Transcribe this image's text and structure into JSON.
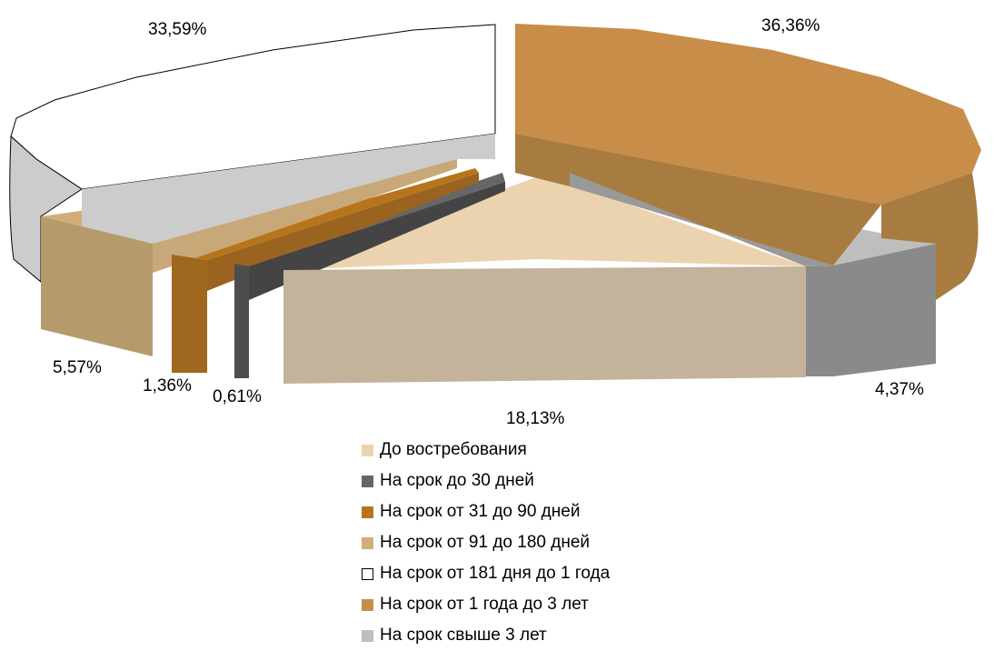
{
  "chart_data": {
    "type": "pie",
    "title": "",
    "categories": [
      "До востребования",
      "На срок до 30 дней",
      "На срок от 31 до 90 дней",
      "На срок от 91 до 180 дней",
      "На срок от 181 дня до 1 года",
      "На срок от 1 года до 3 лет",
      "На срок свыше 3 лет"
    ],
    "values": [
      18.13,
      0.61,
      1.36,
      5.57,
      33.59,
      36.36,
      4.37
    ],
    "data_labels": [
      "18,13%",
      "0,61%",
      "1,36%",
      "5,57%",
      "33,59%",
      "36,36%",
      "4,37%"
    ],
    "colors": [
      "#EBD3B0",
      "#666666",
      "#B8741A",
      "#D4AC7C",
      "#FFFFFF",
      "#C88D48",
      "#BEBEBE"
    ],
    "side_colors": [
      "#C3B39A",
      "#4D4D4D",
      "#A0681E",
      "#B59A6C",
      "#CCCCCC",
      "#A87C40",
      "#8A8A8A"
    ],
    "style": "3d-exploded",
    "legend_position": "bottom"
  }
}
